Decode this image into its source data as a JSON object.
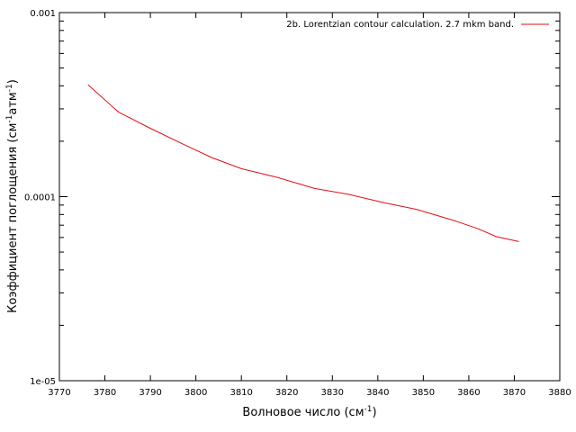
{
  "chart_data": {
    "type": "line",
    "title": "",
    "xlabel": {
      "text": "Волновое число (см",
      "sup": "-1",
      "suffix": ")"
    },
    "ylabel": {
      "text": "Коэффициент поглощения (см",
      "sup1": "-1",
      "mid": "атм",
      "sup2": "-1",
      "suffix": ")"
    },
    "xlim": [
      3770,
      3880
    ],
    "ylim": [
      1e-05,
      0.001
    ],
    "yscale": "log",
    "grid": false,
    "legend_position": "top-right",
    "x_ticks": [
      3770,
      3780,
      3790,
      3800,
      3810,
      3820,
      3830,
      3840,
      3850,
      3860,
      3870,
      3880
    ],
    "x_tick_labels": [
      "3770",
      "3780",
      "3790",
      "3800",
      "3810",
      "3820",
      "3830",
      "3840",
      "3850",
      "3860",
      "3870",
      "3880"
    ],
    "y_major_ticks": [
      1e-05,
      0.0001,
      0.001
    ],
    "y_tick_labels": [
      "1e-05",
      "0.0001",
      "0.001"
    ],
    "y_minor_ticks": [
      2e-05,
      3e-05,
      4e-05,
      5e-05,
      6e-05,
      7e-05,
      8e-05,
      9e-05,
      0.0002,
      0.0003,
      0.0004,
      0.0005,
      0.0006,
      0.0007,
      0.0008,
      0.0009
    ],
    "series": [
      {
        "name": "2b. Lorentzian contour calculation. 2.7 mkm band.",
        "color": "#dd1111",
        "x": [
          3776.3,
          3783.0,
          3790.0,
          3797.0,
          3803.5,
          3810.0,
          3818.0,
          3826.0,
          3833.5,
          3841.5,
          3848.5,
          3856.5,
          3862.0,
          3866.0,
          3871.0
        ],
        "y": [
          0.000405,
          0.000288,
          0.000235,
          0.000194,
          0.000163,
          0.000142,
          0.000127,
          0.000111,
          0.000103,
          9.25e-05,
          8.53e-05,
          7.45e-05,
          6.7e-05,
          6.07e-05,
          5.7e-05
        ]
      }
    ]
  }
}
